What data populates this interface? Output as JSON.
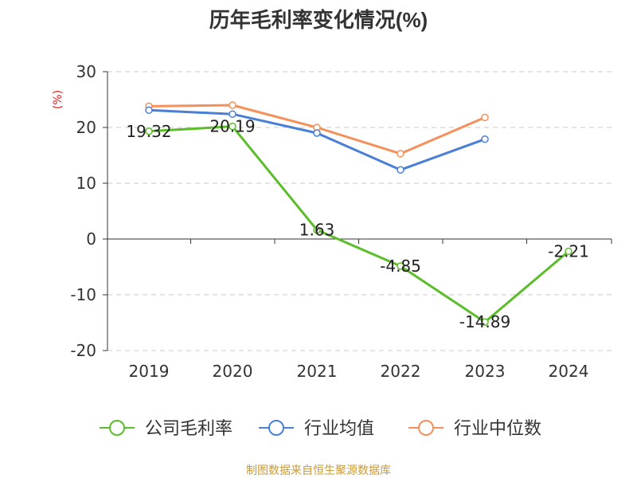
{
  "chart_data": {
    "type": "line",
    "title": "历年毛利率变化情况(%)",
    "ylabel": "(%)",
    "xlabel": "",
    "categories": [
      "2019",
      "2020",
      "2021",
      "2022",
      "2023",
      "2024"
    ],
    "ylim": [
      -20,
      30
    ],
    "yticks": [
      30,
      20,
      10,
      0,
      -10,
      -20
    ],
    "grid": true,
    "legend_position": "bottom",
    "series": [
      {
        "name": "公司毛利率",
        "color": "#5cbd2a",
        "values": [
          19.32,
          20.19,
          1.63,
          -4.85,
          -14.89,
          -2.21
        ],
        "labels": [
          "19.32",
          "20.19",
          "1.63",
          "-4.85",
          "-14.89",
          "-2.21"
        ]
      },
      {
        "name": "行业均值",
        "color": "#4a7fd6",
        "values": [
          23.1,
          22.4,
          19.0,
          12.4,
          17.9,
          null
        ]
      },
      {
        "name": "行业中位数",
        "color": "#f5905a",
        "values": [
          23.8,
          24.0,
          20.0,
          15.3,
          21.8,
          null
        ]
      }
    ]
  },
  "colors": {
    "axis": "#333333",
    "grid": "#c8c8c8",
    "ylabel": "#e02020",
    "source": "#c99a36"
  },
  "source_text": "制图数据来自恒生聚源数据库"
}
